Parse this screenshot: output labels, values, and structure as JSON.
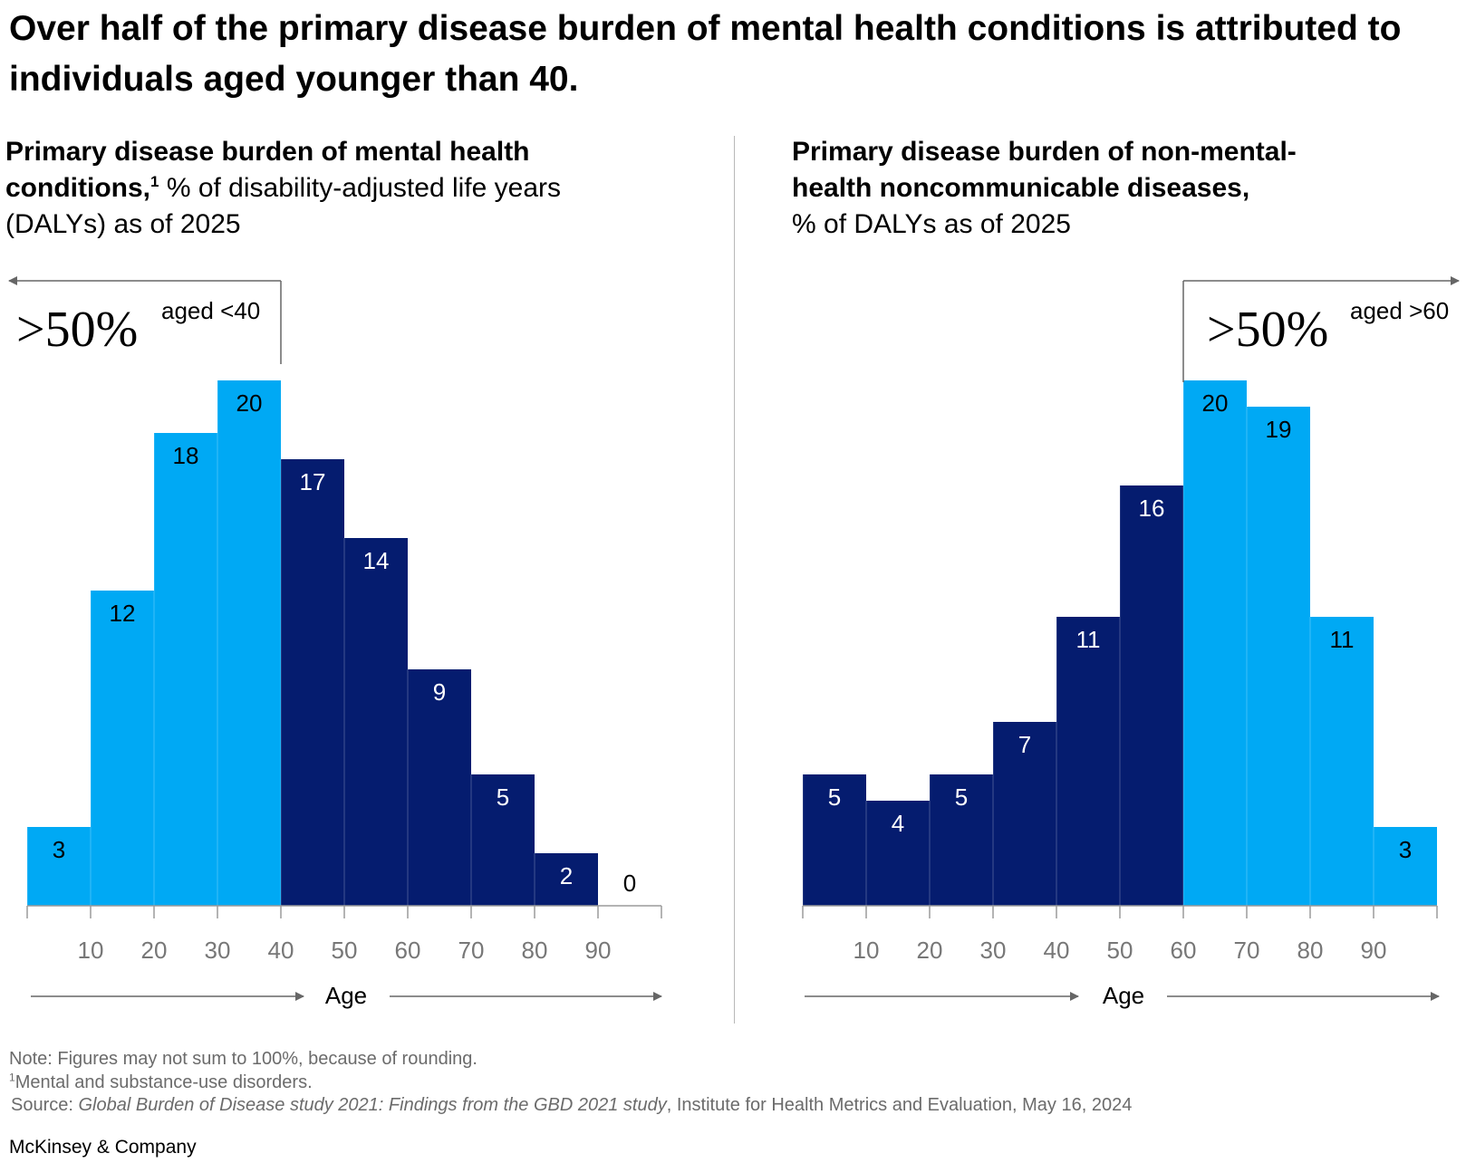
{
  "headline": "Over half of the primary disease burden of mental health conditions is attributed to individuals aged younger than 40.",
  "colors": {
    "light_blue": "#00A9F4",
    "dark_blue": "#051C6F",
    "axis": "#9a9a9a",
    "arrow": "#666666",
    "tick_text": "#777777"
  },
  "left_panel": {
    "title_bold_1": "Primary disease burden of mental health",
    "title_bold_2": "conditions,",
    "title_sup": "1",
    "title_rest": "% of disability-adjusted life years (DALYs) as of 2025",
    "callout_value": ">50%",
    "callout_label": "aged <40"
  },
  "right_panel": {
    "title_bold": "Primary disease burden of non-mental-health noncommunicable diseases,",
    "title_rest": "% of DALYs as of 2025",
    "callout_value": ">50%",
    "callout_label": "aged >60"
  },
  "axis_label": "Age",
  "chart_data": [
    {
      "type": "bar",
      "title": "Primary disease burden of mental health conditions, % of disability-adjusted life years (DALYs) as of 2025",
      "xlabel": "Age",
      "ylabel": "% of DALYs",
      "tick_labels": [
        "10",
        "20",
        "30",
        "40",
        "50",
        "60",
        "70",
        "80",
        "90"
      ],
      "bins": [
        "0-10",
        "10-20",
        "20-30",
        "30-40",
        "40-50",
        "50-60",
        "60-70",
        "70-80",
        "80-90",
        "90+"
      ],
      "values": [
        3,
        12,
        18,
        20,
        17,
        14,
        9,
        5,
        2,
        0
      ],
      "highlight": [
        "light",
        "light",
        "light",
        "light",
        "dark",
        "dark",
        "dark",
        "dark",
        "dark",
        "dark"
      ],
      "ylim": [
        0,
        20
      ],
      "annotation": ">50% aged <40"
    },
    {
      "type": "bar",
      "title": "Primary disease burden of non-mental-health noncommunicable diseases, % of DALYs as of 2025",
      "xlabel": "Age",
      "ylabel": "% of DALYs",
      "tick_labels": [
        "10",
        "20",
        "30",
        "40",
        "50",
        "60",
        "70",
        "80",
        "90"
      ],
      "bins": [
        "0-10",
        "10-20",
        "20-30",
        "30-40",
        "40-50",
        "50-60",
        "60-70",
        "70-80",
        "80-90",
        "90+"
      ],
      "values": [
        5,
        4,
        5,
        7,
        11,
        16,
        20,
        19,
        11,
        3
      ],
      "highlight": [
        "dark",
        "dark",
        "dark",
        "dark",
        "dark",
        "dark",
        "light",
        "light",
        "light",
        "light"
      ],
      "ylim": [
        0,
        20
      ],
      "annotation": ">50% aged >60"
    }
  ],
  "footer": {
    "note": "Note: Figures may not sum to 100%, because of rounding.",
    "footnote_mark": "1",
    "footnote": "Mental and substance-use disorders.",
    "source_prefix": "Source: ",
    "source_title": "Global Burden of Disease study 2021: Findings from the GBD 2021 study",
    "source_rest": ", Institute for Health Metrics and Evaluation, May 16, 2024",
    "brand": "McKinsey & Company"
  }
}
